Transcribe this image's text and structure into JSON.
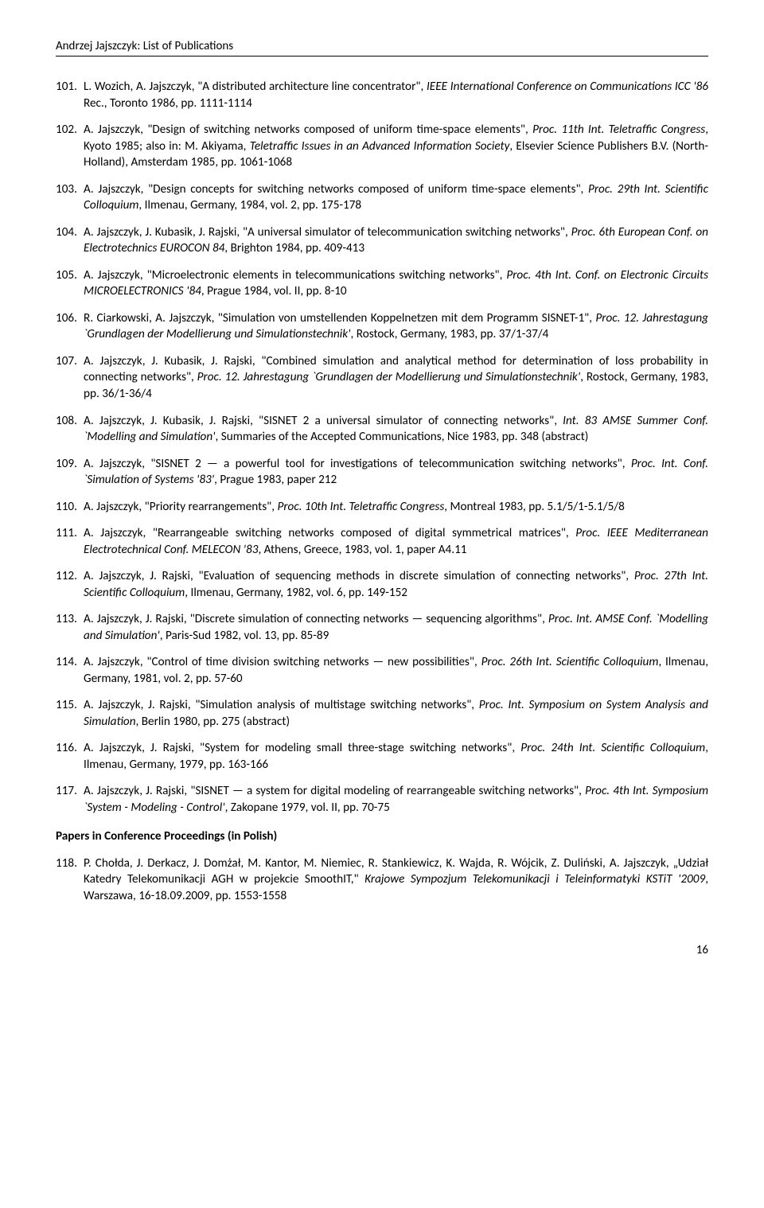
{
  "header": "Andrzej Jajszczyk: List of Publications",
  "entries": [
    {
      "num": "101.",
      "html": "L. Wozich, A. Jajszczyk, \"A distributed architecture line concentrator\", <span class='italic'>IEEE International Conference on Communications ICC '86</span> Rec., Toronto 1986, pp. 1111-1114"
    },
    {
      "num": "102.",
      "html": "A. Jajszczyk, \"Design of switching networks composed of uniform time-space elements\", <span class='italic'>Proc. 11th Int. Teletraffic Congress</span>, Kyoto 1985; also in: M. Akiyama, <span class='italic'>Teletraffic Issues in an Advanced Information Society</span>, Elsevier Science Publishers B.V. (North-Holland), Amsterdam 1985, pp. 1061-1068"
    },
    {
      "num": "103.",
      "html": "A. Jajszczyk, \"Design concepts for switching networks composed of uniform time-space elements\", <span class='italic'>Proc. 29th Int. Scientific Colloquium</span>, Ilmenau, Germany, 1984, vol. 2, pp. 175-178"
    },
    {
      "num": "104.",
      "html": "A. Jajszczyk, J. Kubasik, J. Rajski, \"A universal simulator of telecommunication switching networks\", <span class='italic'>Proc. 6th European Conf. on Electrotechnics EUROCON  84</span>, Brighton 1984, pp. 409-413"
    },
    {
      "num": "105.",
      "html": "A. Jajszczyk, \"Microelectronic elements in telecommunications switching networks\", <span class='italic'>Proc. 4th Int. Conf. on Electronic Circuits MICROELECTRONICS  '84</span>, Prague 1984, vol. II, pp. 8-10"
    },
    {
      "num": "106.",
      "html": "R. Ciarkowski, A. Jajszczyk, \"Simulation von umstellenden Koppelnetzen mit dem Programm SISNET-1\", <span class='italic'>Proc. 12. Jahrestagung `Grundlagen der Modellierung und Simulationstechnik'</span>, Rostock, Germany, 1983, pp. 37/1-37/4"
    },
    {
      "num": "107.",
      "html": "A. Jajszczyk, J. Kubasik, J. Rajski, \"Combined simulation and analytical method for determination of loss probability in connecting networks\", <span class='italic'>Proc. 12. Jahrestagung `Grundlagen der Modellierung und Simulationstechnik'</span>, Rostock, Germany, 1983, pp. 36/1-36/4"
    },
    {
      "num": "108.",
      "html": "A. Jajszczyk, J. Kubasik, J. Rajski,  \"SISNET 2  a universal simulator of connecting networks\", <span class='italic'>Int. 83 AMSE Summer Conf. `Modelling and Simulation'</span>, Summaries of the Accepted Communications, Nice 1983, pp. 348 (abstract)"
    },
    {
      "num": "109.",
      "html": "A. Jajszczyk, \"SISNET 2 — a powerful tool for investigations of telecommunication switching networks\", <span class='italic'>Proc. Int. Conf. `Simulation of Systems  '83'</span>, Prague 1983, paper 212"
    },
    {
      "num": "110.",
      "html": "A. Jajszczyk, \"Priority rearrangements\", <span class='italic'>Proc. 10th Int. Teletraffic Congress</span>, Montreal 1983, pp. 5.1/5/1-5.1/5/8"
    },
    {
      "num": "111.",
      "html": "A. Jajszczyk, \"Rearrangeable switching networks composed of digital symmetrical matrices\", <span class='italic'>Proc. IEEE Mediterranean Electrotechnical Conf. MELECON  '83</span>, Athens, Greece, 1983, vol. 1, paper A4.11"
    },
    {
      "num": "112.",
      "html": "A. Jajszczyk, J. Rajski, \"Evaluation of sequencing methods in discrete simulation of connecting networks\", <span class='italic'>Proc. 27th Int. Scientific Colloquium</span>, Ilmenau, Germany, 1982, vol. 6, pp. 149-152"
    },
    {
      "num": "113.",
      "html": "A. Jajszczyk, J. Rajski, \"Discrete simulation of connecting networks — sequencing algorithms\", <span class='italic'>Proc. Int. AMSE Conf. `Modelling and Simulation'</span>, Paris-Sud 1982, vol. 13, pp. 85-89"
    },
    {
      "num": "114.",
      "html": "A. Jajszczyk, \"Control of time division switching networks — new possibilities\", <span class='italic'>Proc. 26th Int. Scientific Colloquium</span>, Ilmenau, Germany, 1981, vol. 2, pp. 57-60"
    },
    {
      "num": "115.",
      "html": "A. Jajszczyk, J. Rajski,  \"Simulation analysis of multistage switching networks\", <span class='italic'>Proc. Int. Symposium on System Analysis and Simulation</span>, Berlin 1980, pp. 275 (abstract)"
    },
    {
      "num": "116.",
      "html": "A. Jajszczyk, J. Rajski, \"System for modeling small three-stage switching networks\", <span class='italic'>Proc. 24th Int. Scientific Colloquium</span>, Ilmenau, Germany, 1979, pp. 163-166"
    },
    {
      "num": "117.",
      "html": "A. Jajszczyk, J. Rajski, \"SISNET — a system for digital modeling of rearrangeable switching networks\", <span class='italic'>Proc. 4th Int. Symposium `System - Modeling - Control'</span>, Zakopane 1979, vol. II, pp. 70-75"
    }
  ],
  "sectionHeading": "Papers in Conference Proceedings (in Polish)",
  "polishEntries": [
    {
      "num": "118.",
      "html": "P. Chołda, J. Derkacz, J. Domżał, M. Kantor, M. Niemiec, R. Stankiewicz, K. Wajda, R. Wójcik, Z. Duliński, A. Jajszczyk, „Udział Katedry Telekomunikacji AGH w projekcie SmoothIT,\" <span class='italic'>Krajowe Sympozjum Telekomunikacji i Teleinformatyki KSTiT '2009</span>, Warszawa, 16-18.09.2009, pp. 1553-1558"
    }
  ],
  "pageNumber": "16"
}
